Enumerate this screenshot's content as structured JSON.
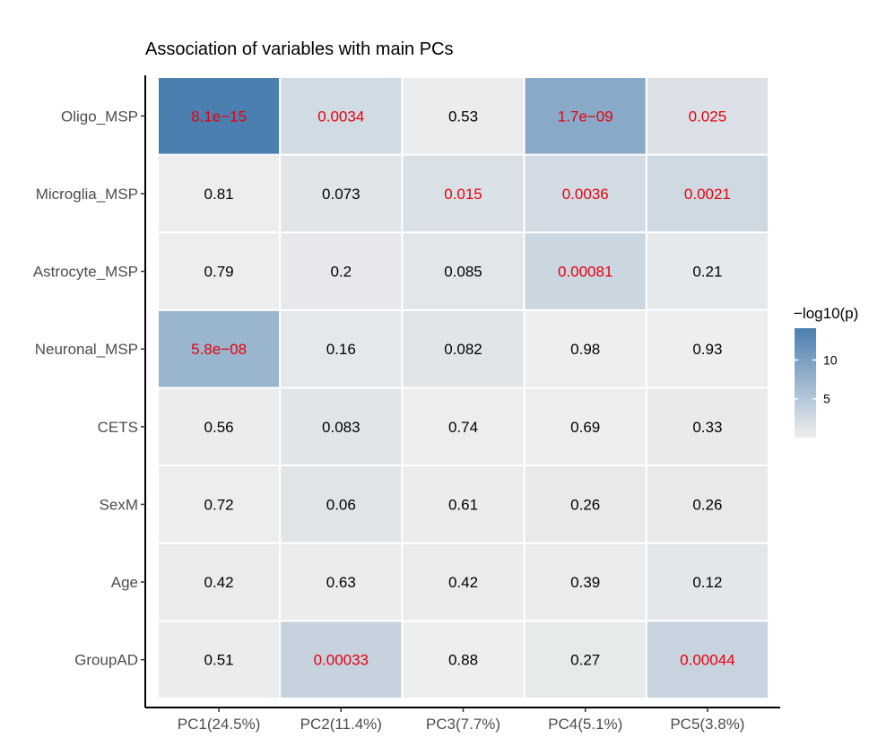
{
  "chart_data": {
    "type": "heatmap",
    "title": "Association of variables with main PCs",
    "rows": [
      "Oligo_MSP",
      "Microglia_MSP",
      "Astrocyte_MSP",
      "Neuronal_MSP",
      "CETS",
      "SexM",
      "Age",
      "GroupAD"
    ],
    "columns": [
      "PC1(24.5%)",
      "PC2(11.4%)",
      "PC3(7.7%)",
      "PC4(5.1%)",
      "PC5(3.8%)"
    ],
    "labels": [
      [
        "8.1e−15",
        "0.0034",
        "0.53",
        "1.7e−09",
        "0.025"
      ],
      [
        "0.81",
        "0.073",
        "0.015",
        "0.0036",
        "0.0021"
      ],
      [
        "0.79",
        "0.2",
        "0.085",
        "0.00081",
        "0.21"
      ],
      [
        "5.8e−08",
        "0.16",
        "0.082",
        "0.98",
        "0.93"
      ],
      [
        "0.56",
        "0.083",
        "0.74",
        "0.69",
        "0.33"
      ],
      [
        "0.72",
        "0.06",
        "0.61",
        "0.26",
        "0.26"
      ],
      [
        "0.42",
        "0.63",
        "0.42",
        "0.39",
        "0.12"
      ],
      [
        "0.51",
        "0.00033",
        "0.88",
        "0.27",
        "0.00044"
      ]
    ],
    "p_values": [
      [
        8.1e-15,
        0.0034,
        0.53,
        1.7e-09,
        0.025
      ],
      [
        0.81,
        0.073,
        0.015,
        0.0036,
        0.0021
      ],
      [
        0.79,
        0.2,
        0.085,
        0.00081,
        0.21
      ],
      [
        5.8e-08,
        0.16,
        0.082,
        0.98,
        0.93
      ],
      [
        0.56,
        0.083,
        0.74,
        0.69,
        0.33
      ],
      [
        0.72,
        0.06,
        0.61,
        0.26,
        0.26
      ],
      [
        0.42,
        0.63,
        0.42,
        0.39,
        0.12
      ],
      [
        0.51,
        0.00033,
        0.88,
        0.27,
        0.00044
      ]
    ],
    "significant": [
      [
        true,
        true,
        false,
        true,
        true
      ],
      [
        false,
        false,
        true,
        true,
        true
      ],
      [
        false,
        false,
        false,
        true,
        false
      ],
      [
        true,
        false,
        false,
        false,
        false
      ],
      [
        false,
        false,
        false,
        false,
        false
      ],
      [
        false,
        false,
        false,
        false,
        false
      ],
      [
        false,
        false,
        false,
        false,
        false
      ],
      [
        false,
        true,
        false,
        false,
        true
      ]
    ],
    "legend": {
      "title": "−log10(p)",
      "ticks": [
        {
          "value": 5,
          "label": "5"
        },
        {
          "value": 10,
          "label": "10"
        }
      ],
      "range": [
        0,
        14.1
      ]
    },
    "colors": {
      "low": "#eeeeee",
      "high": "#4a7fb0",
      "significant_text": "#e8000b",
      "normal_text": "#000000"
    }
  }
}
